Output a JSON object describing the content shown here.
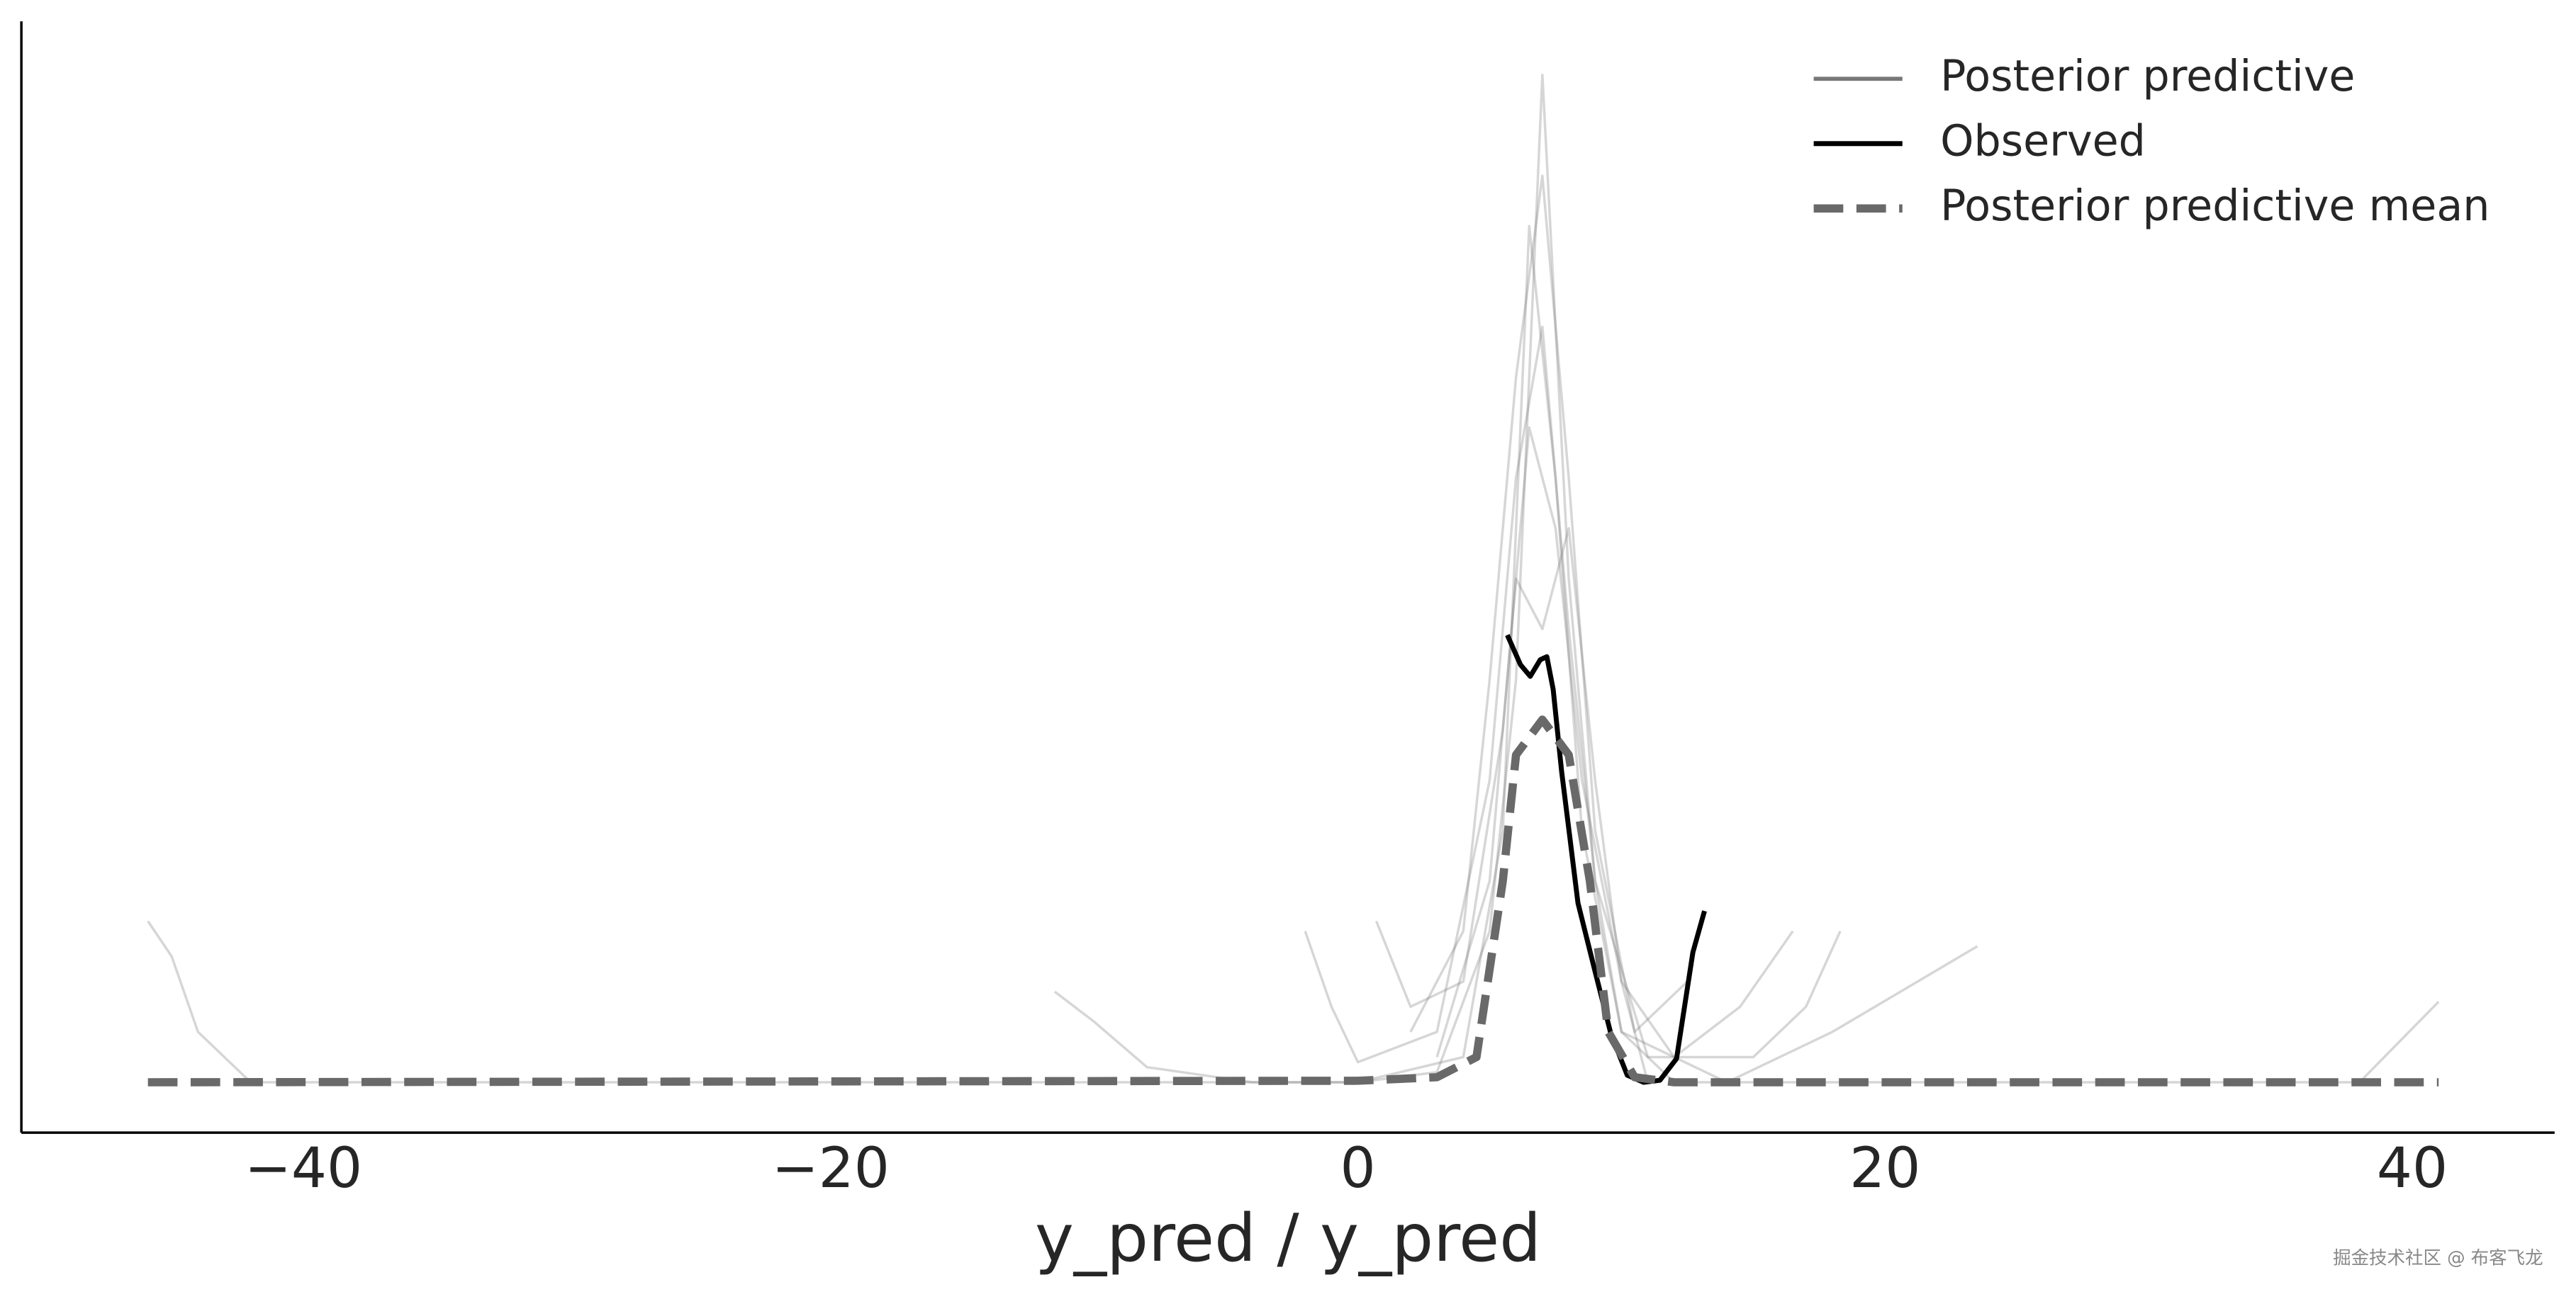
{
  "chart_data": {
    "type": "line",
    "xlabel": "y_pred / y_pred",
    "xlim": [
      -50.7,
      45.4
    ],
    "xticks": [
      {
        "value": -40,
        "label": "−40"
      },
      {
        "value": -20,
        "label": "−20"
      },
      0,
      20,
      40
    ],
    "ylim": [
      -0.01,
      0.21
    ],
    "legend_loc": "upper right",
    "watermark": "掘金技术社区 @ 布客飞龙",
    "series": [
      {
        "name": "Posterior predictive",
        "color": "#777777",
        "x": [
          -45.9,
          -45,
          -44,
          -42,
          -30,
          0,
          3,
          5,
          6,
          7,
          8,
          9,
          10,
          12,
          20,
          38,
          39.5,
          41
        ],
        "values": [
          0.032,
          0.025,
          0.01,
          0,
          0,
          0,
          0.002,
          0.03,
          0.08,
          0.2,
          0.1,
          0.04,
          0.01,
          0,
          0,
          0,
          0.008,
          0.016
        ]
      },
      {
        "color": "#777777",
        "x": [
          -11.5,
          -10,
          -8,
          -4,
          0,
          4,
          5.5,
          6.5,
          7.5,
          8.5,
          10,
          14,
          18,
          23.5
        ],
        "values": [
          0.018,
          0.012,
          0.003,
          0,
          0,
          0.005,
          0.05,
          0.17,
          0.12,
          0.05,
          0.01,
          0,
          0.01,
          0.027
        ]
      },
      {
        "color": "#777777",
        "x": [
          -2,
          -1,
          0,
          3,
          5,
          6,
          7,
          8,
          9,
          11,
          15,
          17,
          18.3
        ],
        "values": [
          0.03,
          0.015,
          0.004,
          0.01,
          0.06,
          0.12,
          0.15,
          0.09,
          0.04,
          0.005,
          0.005,
          0.015,
          0.03
        ]
      },
      {
        "color": "#777777",
        "x": [
          0.7,
          2,
          4,
          5.5,
          6.5,
          7.5,
          8.5,
          10,
          12,
          14.5,
          16.5
        ],
        "values": [
          0.032,
          0.015,
          0.02,
          0.07,
          0.13,
          0.11,
          0.06,
          0.02,
          0.005,
          0.015,
          0.03
        ]
      },
      {
        "color": "#777777",
        "x": [
          2,
          4,
          5,
          6,
          7,
          8,
          9,
          10.5,
          12.5
        ],
        "values": [
          0.01,
          0.03,
          0.08,
          0.14,
          0.18,
          0.12,
          0.05,
          0.01,
          0.02
        ]
      },
      {
        "color": "#777777",
        "x": [
          3,
          5,
          6,
          7,
          8,
          9,
          10,
          11
        ],
        "values": [
          0.005,
          0.04,
          0.1,
          0.09,
          0.11,
          0.06,
          0.02,
          0
        ]
      },
      {
        "name": "Observed",
        "color": "#000000",
        "x": [
          5.67,
          6.17,
          6.54,
          6.92,
          7.17,
          7.41,
          7.73,
          8.04,
          8.35,
          8.97,
          9.6,
          10.22,
          10.84,
          11.46,
          12.09,
          12.71,
          13.15
        ],
        "values": [
          0.0888,
          0.0829,
          0.0806,
          0.0839,
          0.0845,
          0.078,
          0.0617,
          0.0487,
          0.0356,
          0.0226,
          0.0096,
          0.0014,
          0,
          0.0004,
          0.0047,
          0.0258,
          0.034
        ]
      },
      {
        "name": "Posterior predictive mean",
        "color": "#696969",
        "dashed": true,
        "x": [
          -45.9,
          0,
          3,
          4.5,
          5.5,
          6,
          7,
          8,
          8.8,
          9.5,
          10.5,
          12,
          41
        ],
        "values": [
          0,
          0.0003,
          0.001,
          0.005,
          0.04,
          0.065,
          0.072,
          0.065,
          0.04,
          0.01,
          0.001,
          0,
          0
        ]
      }
    ]
  }
}
